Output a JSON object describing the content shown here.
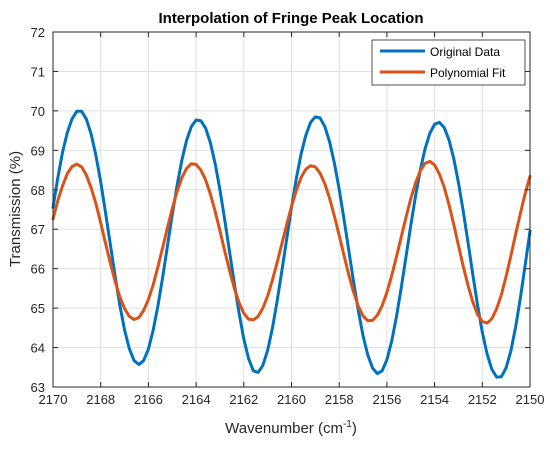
{
  "chart_data": {
    "type": "line",
    "title": "Interpolation of Fringe Peak Location",
    "xlabel_main": "Wavenumber (cm",
    "xlabel_sup": "-1",
    "xlabel_close": ")",
    "ylabel": "Transmission (%)",
    "xlim": [
      2170,
      2150
    ],
    "ylim": [
      63,
      72
    ],
    "x_reversed": true,
    "xticks": [
      "2170",
      "2168",
      "2166",
      "2164",
      "2162",
      "2160",
      "2158",
      "2156",
      "2154",
      "2152",
      "2150"
    ],
    "yticks": [
      "63",
      "64",
      "65",
      "66",
      "67",
      "68",
      "69",
      "70",
      "71",
      "72"
    ],
    "grid": true,
    "legend_position": "top-right",
    "series": [
      {
        "name": "Original Data",
        "color": "#0072BD",
        "x": [
          2170.0,
          2169.8,
          2169.6,
          2169.4,
          2169.2,
          2169.0,
          2168.8,
          2168.6,
          2168.4,
          2168.2,
          2168.0,
          2167.8,
          2167.6,
          2167.4,
          2167.2,
          2167.0,
          2166.8,
          2166.6,
          2166.4,
          2166.2,
          2166.0,
          2165.8,
          2165.6,
          2165.4,
          2165.2,
          2165.0,
          2164.8,
          2164.6,
          2164.4,
          2164.2,
          2164.0,
          2163.8,
          2163.6,
          2163.4,
          2163.2,
          2163.0,
          2162.8,
          2162.6,
          2162.4,
          2162.2,
          2162.0,
          2161.8,
          2161.6,
          2161.4,
          2161.2,
          2161.0,
          2160.8,
          2160.6,
          2160.4,
          2160.2,
          2160.0,
          2159.8,
          2159.6,
          2159.4,
          2159.2,
          2159.0,
          2158.8,
          2158.6,
          2158.4,
          2158.2,
          2158.0,
          2157.8,
          2157.6,
          2157.4,
          2157.2,
          2157.0,
          2156.8,
          2156.6,
          2156.4,
          2156.2,
          2156.0,
          2155.8,
          2155.6,
          2155.4,
          2155.2,
          2155.0,
          2154.8,
          2154.6,
          2154.4,
          2154.2,
          2154.0,
          2153.8,
          2153.6,
          2153.4,
          2153.2,
          2153.0,
          2152.8,
          2152.6,
          2152.4,
          2152.2,
          2152.0,
          2151.8,
          2151.6,
          2151.4,
          2151.2,
          2151.0,
          2150.8,
          2150.6,
          2150.4,
          2150.2,
          2150.0
        ],
        "y": [
          67.55,
          68.3,
          68.95,
          69.45,
          69.8,
          69.99,
          69.99,
          69.79,
          69.41,
          68.87,
          68.2,
          67.43,
          66.63,
          65.83,
          65.08,
          64.45,
          63.97,
          63.67,
          63.57,
          63.67,
          63.96,
          64.44,
          65.06,
          65.79,
          66.58,
          67.37,
          68.1,
          68.74,
          69.25,
          69.6,
          69.77,
          69.75,
          69.56,
          69.19,
          68.66,
          68.0,
          67.24,
          66.44,
          65.64,
          64.88,
          64.22,
          63.72,
          63.41,
          63.37,
          63.55,
          63.93,
          64.49,
          65.19,
          65.96,
          66.76,
          67.55,
          68.28,
          68.9,
          69.38,
          69.71,
          69.85,
          69.82,
          69.6,
          69.21,
          68.67,
          68.01,
          67.26,
          66.47,
          65.68,
          64.94,
          64.3,
          63.81,
          63.48,
          63.34,
          63.41,
          63.69,
          64.16,
          64.78,
          65.51,
          66.3,
          67.09,
          67.84,
          68.5,
          69.04,
          69.43,
          69.66,
          69.71,
          69.58,
          69.27,
          68.8,
          68.18,
          67.46,
          66.67,
          65.86,
          65.08,
          64.39,
          63.84,
          63.45,
          63.25,
          63.26,
          63.49,
          63.92,
          64.53,
          65.27,
          66.1,
          66.95
        ]
      },
      {
        "name": "Polynomial Fit",
        "color": "#D95319",
        "x": [
          2170.0,
          2169.8,
          2169.6,
          2169.4,
          2169.2,
          2169.0,
          2168.8,
          2168.6,
          2168.4,
          2168.2,
          2168.0,
          2167.8,
          2167.6,
          2167.4,
          2167.2,
          2167.0,
          2166.8,
          2166.6,
          2166.4,
          2166.2,
          2166.0,
          2165.8,
          2165.6,
          2165.4,
          2165.2,
          2165.0,
          2164.8,
          2164.6,
          2164.4,
          2164.2,
          2164.0,
          2163.8,
          2163.6,
          2163.4,
          2163.2,
          2163.0,
          2162.8,
          2162.6,
          2162.4,
          2162.2,
          2162.0,
          2161.8,
          2161.6,
          2161.4,
          2161.2,
          2161.0,
          2160.8,
          2160.6,
          2160.4,
          2160.2,
          2160.0,
          2159.8,
          2159.6,
          2159.4,
          2159.2,
          2159.0,
          2158.8,
          2158.6,
          2158.4,
          2158.2,
          2158.0,
          2157.8,
          2157.6,
          2157.4,
          2157.2,
          2157.0,
          2156.8,
          2156.6,
          2156.4,
          2156.2,
          2156.0,
          2155.8,
          2155.6,
          2155.4,
          2155.2,
          2155.0,
          2154.8,
          2154.6,
          2154.4,
          2154.2,
          2154.0,
          2153.8,
          2153.6,
          2153.4,
          2153.2,
          2153.0,
          2152.8,
          2152.6,
          2152.4,
          2152.2,
          2152.0,
          2151.8,
          2151.6,
          2151.4,
          2151.2,
          2151.0,
          2150.8,
          2150.6,
          2150.4,
          2150.2,
          2150.0
        ],
        "y": [
          67.26,
          67.72,
          68.1,
          68.41,
          68.59,
          68.65,
          68.58,
          68.37,
          68.05,
          67.65,
          67.16,
          66.65,
          66.15,
          65.69,
          65.29,
          64.99,
          64.79,
          64.71,
          64.76,
          64.94,
          65.22,
          65.59,
          66.05,
          66.54,
          67.04,
          67.52,
          67.95,
          68.3,
          68.54,
          68.66,
          68.64,
          68.5,
          68.25,
          67.89,
          67.45,
          66.96,
          66.45,
          65.96,
          65.51,
          65.14,
          64.87,
          64.72,
          64.7,
          64.79,
          65.0,
          65.31,
          65.71,
          66.16,
          66.64,
          67.12,
          67.58,
          67.98,
          68.31,
          68.52,
          68.61,
          68.58,
          68.42,
          68.15,
          67.78,
          67.33,
          66.84,
          66.34,
          65.85,
          65.41,
          65.05,
          64.8,
          64.68,
          64.69,
          64.82,
          65.06,
          65.4,
          65.82,
          66.3,
          66.8,
          67.3,
          67.77,
          68.17,
          68.48,
          68.67,
          68.72,
          68.63,
          68.4,
          68.07,
          67.63,
          67.13,
          66.59,
          66.06,
          65.58,
          65.16,
          64.84,
          64.66,
          64.62,
          64.73,
          64.98,
          65.34,
          65.81,
          66.33,
          66.88,
          67.41,
          67.91,
          68.34
        ]
      }
    ]
  }
}
